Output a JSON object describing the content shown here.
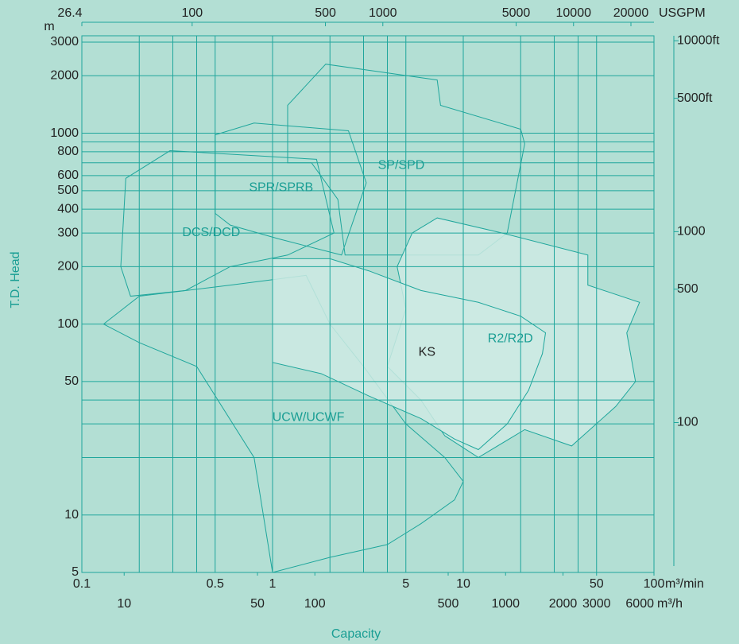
{
  "chart_data": {
    "type": "region",
    "xlabel": "Capacity",
    "ylabel": "T.D. Head",
    "xlim": [
      0.1,
      100
    ],
    "xlog": true,
    "xticks": [
      0.1,
      0.5,
      1,
      5,
      10,
      50,
      100
    ],
    "x_unit": "m³/min",
    "xgrid": [
      0.2,
      0.3,
      0.4,
      0.5,
      1,
      2,
      3,
      4,
      5,
      10,
      20,
      30,
      40,
      50
    ],
    "x2lim": [
      6,
      6000
    ],
    "x2ticks": [
      10,
      50,
      100,
      500,
      1000,
      2000,
      3000,
      6000
    ],
    "x2_unit": "m³/h",
    "x3lim": [
      26.4,
      26417
    ],
    "x3ticks": [
      26.4,
      100,
      500,
      1000,
      5000,
      10000,
      20000
    ],
    "x3_unit": "USGPM",
    "ylim": [
      5,
      3000
    ],
    "ylog": true,
    "yticks": [
      3000,
      2000,
      1000,
      800,
      600,
      500,
      400,
      300,
      200,
      100,
      50,
      10,
      5
    ],
    "y_unit": "m",
    "ygrid": [
      900,
      700,
      40,
      30,
      20
    ],
    "y2lim": [
      16.4,
      9842.5
    ],
    "y2ticks": [
      {
        "value": 10000,
        "label": "10000ft"
      },
      {
        "value": 5000,
        "label": "5000ft"
      },
      1000,
      500,
      100
    ],
    "regions": [
      {
        "name": "UCW/UCWF",
        "color": "#1a9e94",
        "shaded": false,
        "outline": [
          [
            0.13,
            100
          ],
          [
            0.2,
            140
          ],
          [
            0.6,
            160
          ],
          [
            1.5,
            180
          ],
          [
            2,
            100
          ],
          [
            3,
            60
          ],
          [
            5,
            30
          ],
          [
            8,
            20
          ],
          [
            10,
            15
          ],
          [
            9,
            12
          ],
          [
            6,
            9
          ],
          [
            4,
            7
          ],
          [
            2,
            6
          ],
          [
            1,
            5
          ],
          [
            0.8,
            20
          ],
          [
            0.4,
            60
          ],
          [
            0.2,
            80
          ]
        ]
      },
      {
        "name": "DCS/DCD",
        "color": "#1a9e94",
        "shaded": false,
        "outline": [
          [
            0.16,
            200
          ],
          [
            0.17,
            580
          ],
          [
            0.29,
            810
          ],
          [
            1.7,
            730
          ],
          [
            2.1,
            300
          ],
          [
            1.2,
            230
          ],
          [
            0.6,
            200
          ],
          [
            0.35,
            150
          ],
          [
            0.18,
            140
          ]
        ]
      },
      {
        "name": "SPR/SPRB",
        "color": "#1a9e94",
        "shaded": false,
        "outline": [
          [
            0.5,
            380
          ],
          [
            0.5,
            980
          ],
          [
            0.8,
            1130
          ],
          [
            2.5,
            1030
          ],
          [
            3.1,
            550
          ],
          [
            2.3,
            230
          ],
          [
            1.07,
            280
          ],
          [
            0.6,
            330
          ]
        ]
      },
      {
        "name": "SP/SPD",
        "color": "#1a9e94",
        "shaded": false,
        "outline": [
          [
            1.2,
            700
          ],
          [
            1.2,
            1400
          ],
          [
            1.9,
            2300
          ],
          [
            7.3,
            1900
          ],
          [
            7.6,
            1400
          ],
          [
            20,
            1050
          ],
          [
            21,
            880
          ],
          [
            17,
            300
          ],
          [
            12,
            230
          ],
          [
            5.4,
            230
          ],
          [
            2.4,
            230
          ],
          [
            2.2,
            450
          ],
          [
            1.6,
            700
          ]
        ]
      },
      {
        "name": "R2/R2D",
        "color": "#1a9e94",
        "shaded": true,
        "outline": [
          [
            5.4,
            300
          ],
          [
            7.3,
            360
          ],
          [
            16,
            300
          ],
          [
            45,
            230
          ],
          [
            45,
            160
          ],
          [
            84,
            130
          ],
          [
            72,
            90
          ],
          [
            80,
            50
          ],
          [
            63,
            37
          ],
          [
            37,
            23
          ],
          [
            21,
            28
          ],
          [
            12,
            20
          ],
          [
            8,
            26
          ],
          [
            6,
            40
          ],
          [
            4,
            60
          ],
          [
            5,
            120
          ],
          [
            4.5,
            200
          ]
        ]
      },
      {
        "name": "KS",
        "color": "#222222",
        "shaded": true,
        "outline": [
          [
            1,
            220
          ],
          [
            2,
            220
          ],
          [
            3.2,
            190
          ],
          [
            6,
            150
          ],
          [
            12,
            130
          ],
          [
            20,
            110
          ],
          [
            27,
            90
          ],
          [
            26,
            70
          ],
          [
            22,
            45
          ],
          [
            17,
            30
          ],
          [
            12,
            22
          ],
          [
            9,
            25
          ],
          [
            6,
            32
          ],
          [
            3.2,
            42
          ],
          [
            1.8,
            55
          ],
          [
            1,
            63
          ]
        ]
      }
    ]
  }
}
